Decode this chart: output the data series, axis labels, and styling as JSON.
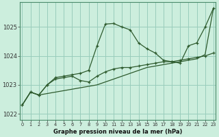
{
  "xlabel": "Graphe pression niveau de la mer (hPa)",
  "bg_color": "#cceedd",
  "grid_color": "#99ccbb",
  "line_color": "#2d5a2d",
  "x_ticks": [
    0,
    1,
    2,
    3,
    4,
    5,
    6,
    7,
    8,
    9,
    10,
    11,
    12,
    13,
    14,
    15,
    16,
    17,
    18,
    19,
    20,
    21,
    22,
    23
  ],
  "ylim": [
    1021.8,
    1025.85
  ],
  "yticks": [
    1022,
    1023,
    1024,
    1025
  ],
  "line1_y": [
    1022.3,
    1022.75,
    1022.65,
    1023.0,
    1023.2,
    1023.25,
    1023.3,
    1023.15,
    1023.1,
    1023.3,
    1023.45,
    1023.55,
    1023.6,
    1023.6,
    1023.65,
    1023.7,
    1023.75,
    1023.8,
    1023.8,
    1023.85,
    1023.9,
    1023.95,
    1024.0,
    1024.1
  ],
  "line2_y": [
    1022.3,
    1022.75,
    1022.65,
    1023.0,
    1023.25,
    1023.3,
    1023.35,
    1023.4,
    1023.5,
    1024.35,
    1025.1,
    1025.12,
    1025.0,
    1024.9,
    1024.45,
    1024.25,
    1024.1,
    1023.85,
    1023.8,
    1023.75,
    1024.35,
    1024.45,
    1025.0,
    1025.65
  ],
  "line3_y": [
    1022.3,
    1022.75,
    1022.65,
    1022.7,
    1022.75,
    1022.8,
    1022.85,
    1022.9,
    1022.95,
    1023.0,
    1023.1,
    1023.2,
    1023.3,
    1023.4,
    1023.5,
    1023.6,
    1023.65,
    1023.7,
    1023.75,
    1023.8,
    1023.85,
    1023.9,
    1024.05,
    1025.65
  ]
}
